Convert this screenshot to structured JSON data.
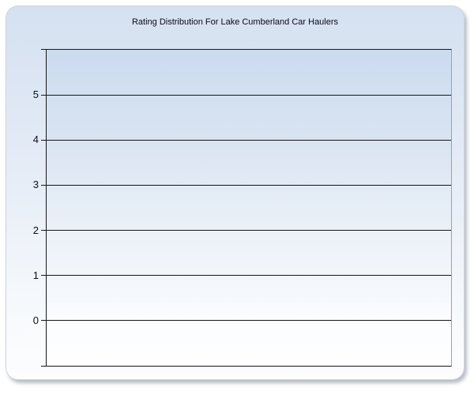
{
  "panel": {
    "title": "Rating Distribution For Lake Cumberland Car Haulers"
  },
  "chart_data": {
    "type": "bar",
    "title": "Rating Distribution For Lake Cumberland Car Haulers",
    "categories": [],
    "values": [],
    "series": [],
    "xlabel": "",
    "ylabel": "",
    "ylim": [
      -1,
      6
    ],
    "y_ticks": [
      5,
      4,
      3,
      2,
      1,
      0
    ],
    "grid": true,
    "legend": false
  },
  "colors": {
    "page_background": "#ffffff",
    "panel_top": "#d5e1f1",
    "panel_bottom": "#fdfdfe",
    "plot_top": "#cbdbee",
    "plot_bottom": "#ffffff",
    "gridline": "#17171c",
    "axis_line": "#17171c",
    "plot_right_border": "#9aa2ac",
    "title_text": "#0a0a18",
    "tick_text": "#0c0c18"
  }
}
